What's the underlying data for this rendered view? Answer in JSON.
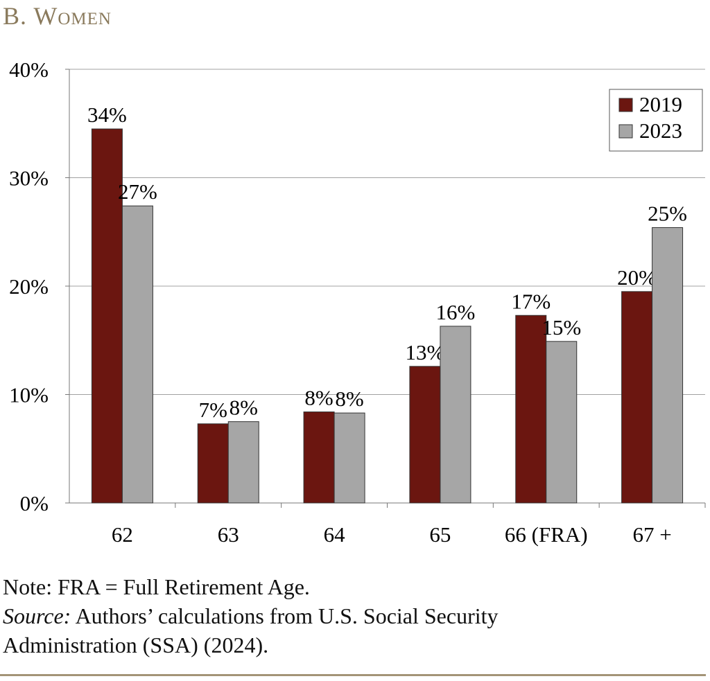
{
  "chart_data": {
    "type": "bar",
    "title": "B. Women",
    "categories": [
      "62",
      "63",
      "64",
      "65",
      "66 (FRA)",
      "67 +"
    ],
    "series": [
      {
        "name": "2019",
        "color": "#6b1610",
        "values": [
          34.5,
          7.3,
          8.4,
          12.6,
          17.3,
          19.5
        ],
        "labels": [
          "34%",
          "7%",
          "8%",
          "13%",
          "17%",
          "20%"
        ]
      },
      {
        "name": "2023",
        "color": "#a6a6a6",
        "values": [
          27.4,
          7.5,
          8.3,
          16.3,
          14.9,
          25.4
        ],
        "labels": [
          "27%",
          "8%",
          "8%",
          "16%",
          "15%",
          "25%"
        ]
      }
    ],
    "ylim": [
      0,
      40
    ],
    "yticks": [
      "0%",
      "10%",
      "20%",
      "30%",
      "40%"
    ],
    "grid": true,
    "legend": "top-right"
  },
  "notes": {
    "note": "Note: FRA = Full Retirement Age.",
    "source_label": "Source:",
    "source_text": " Authors’ calculations from U.S. Social Security",
    "source_text2": "Administration (SSA) (2024)."
  }
}
